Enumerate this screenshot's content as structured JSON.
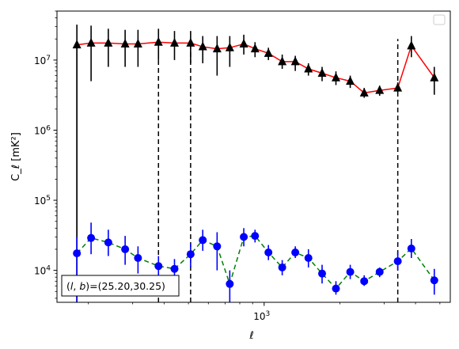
{
  "chart_data": {
    "type": "line",
    "xlabel": "ℓ",
    "ylabel": "C_ℓ  [mK²]",
    "xscale": "log",
    "yscale": "log",
    "xlim": [
      150,
      5500
    ],
    "ylim": [
      3500,
      50000000
    ],
    "x_major_ticks": [
      {
        "value": 1000,
        "base": "10",
        "exp": "3"
      }
    ],
    "y_major_ticks": [
      {
        "value": 10000,
        "base": "10",
        "exp": "4"
      },
      {
        "value": 100000,
        "base": "10",
        "exp": "5"
      },
      {
        "value": 1000000,
        "base": "10",
        "exp": "6"
      },
      {
        "value": 10000000,
        "base": "10",
        "exp": "7"
      }
    ],
    "legend": {
      "position": "upper right",
      "entries": []
    },
    "vlines": [
      {
        "x": 180,
        "y_from": 3500,
        "y_to": 17000000,
        "style": "solid",
        "color": "#000000"
      },
      {
        "x": 380,
        "y_from": 3500,
        "y_to": 18000000,
        "style": "dashed",
        "color": "#000000"
      },
      {
        "x": 510,
        "y_from": 3500,
        "y_to": 18000000,
        "style": "dashed",
        "color": "#000000"
      },
      {
        "x": 3400,
        "y_from": 3500,
        "y_to": 20000000,
        "style": "dashed",
        "color": "#000000"
      }
    ],
    "annotation": {
      "prefix": "(",
      "l": "l",
      "sep": ", ",
      "b": "b",
      "suffix": ")=(25.20,30.25)",
      "position": "lower left"
    },
    "series": [
      {
        "line_color": "#ff0000",
        "marker_color": "#000000",
        "marker": "triangle",
        "linestyle": "solid",
        "points": [
          {
            "x": 180,
            "y": 16500000,
            "lo": 3500,
            "hi": 32000000
          },
          {
            "x": 205,
            "y": 17500000,
            "lo": 5000000,
            "hi": 31000000
          },
          {
            "x": 240,
            "y": 17500000,
            "lo": 8000000,
            "hi": 28000000
          },
          {
            "x": 280,
            "y": 17000000,
            "lo": 8000000,
            "hi": 27000000
          },
          {
            "x": 315,
            "y": 17000000,
            "lo": 8000000,
            "hi": 27000000
          },
          {
            "x": 380,
            "y": 18000000,
            "lo": 10000000,
            "hi": 28000000
          },
          {
            "x": 440,
            "y": 17500000,
            "lo": 10000000,
            "hi": 26000000
          },
          {
            "x": 510,
            "y": 17500000,
            "lo": 9000000,
            "hi": 26000000
          },
          {
            "x": 570,
            "y": 15500000,
            "lo": 9000000,
            "hi": 22000000
          },
          {
            "x": 650,
            "y": 14500000,
            "lo": 6000000,
            "hi": 22000000
          },
          {
            "x": 730,
            "y": 15000000,
            "lo": 8000000,
            "hi": 22000000
          },
          {
            "x": 830,
            "y": 17000000,
            "lo": 12000000,
            "hi": 23000000
          },
          {
            "x": 920,
            "y": 14500000,
            "lo": 11000000,
            "hi": 18000000
          },
          {
            "x": 1040,
            "y": 12500000,
            "lo": 10000000,
            "hi": 15000000
          },
          {
            "x": 1180,
            "y": 9500000,
            "lo": 7500000,
            "hi": 12000000
          },
          {
            "x": 1330,
            "y": 9500000,
            "lo": 7000000,
            "hi": 11500000
          },
          {
            "x": 1500,
            "y": 7500000,
            "lo": 6000000,
            "hi": 9000000
          },
          {
            "x": 1700,
            "y": 6500000,
            "lo": 5000000,
            "hi": 8000000
          },
          {
            "x": 1930,
            "y": 5600000,
            "lo": 4400000,
            "hi": 6900000
          },
          {
            "x": 2200,
            "y": 5000000,
            "lo": 4000000,
            "hi": 6000000
          },
          {
            "x": 2500,
            "y": 3400000,
            "lo": 2900000,
            "hi": 4000000
          },
          {
            "x": 2880,
            "y": 3700000,
            "lo": 3100000,
            "hi": 4300000
          },
          {
            "x": 3400,
            "y": 4000000,
            "lo": 3500000,
            "hi": 4800000
          },
          {
            "x": 3850,
            "y": 16000000,
            "lo": 11000000,
            "hi": 22000000
          },
          {
            "x": 4750,
            "y": 5600000,
            "lo": 3200000,
            "hi": 8000000
          }
        ]
      },
      {
        "line_color": "#008000",
        "marker_color": "#0000ff",
        "marker": "circle",
        "linestyle": "dashed",
        "points": [
          {
            "x": 180,
            "y": 17500,
            "lo": 3500,
            "hi": 30000
          },
          {
            "x": 205,
            "y": 29000,
            "lo": 17000,
            "hi": 48000
          },
          {
            "x": 240,
            "y": 25000,
            "lo": 16000,
            "hi": 38000
          },
          {
            "x": 280,
            "y": 20000,
            "lo": 12000,
            "hi": 31000
          },
          {
            "x": 315,
            "y": 15000,
            "lo": 9000,
            "hi": 22000
          },
          {
            "x": 380,
            "y": 11500,
            "lo": 7000,
            "hi": 16000
          },
          {
            "x": 440,
            "y": 10500,
            "lo": 7000,
            "hi": 14500
          },
          {
            "x": 510,
            "y": 17000,
            "lo": 11000,
            "hi": 24000
          },
          {
            "x": 570,
            "y": 27000,
            "lo": 19000,
            "hi": 38000
          },
          {
            "x": 650,
            "y": 22000,
            "lo": 10000,
            "hi": 35000
          },
          {
            "x": 730,
            "y": 6400,
            "lo": 3500,
            "hi": 10000
          },
          {
            "x": 830,
            "y": 30000,
            "lo": 22000,
            "hi": 40000
          },
          {
            "x": 920,
            "y": 31000,
            "lo": 25000,
            "hi": 38000
          },
          {
            "x": 1040,
            "y": 18000,
            "lo": 14000,
            "hi": 23000
          },
          {
            "x": 1180,
            "y": 11000,
            "lo": 8500,
            "hi": 14000
          },
          {
            "x": 1330,
            "y": 18000,
            "lo": 15000,
            "hi": 22000
          },
          {
            "x": 1500,
            "y": 15000,
            "lo": 11000,
            "hi": 20000
          },
          {
            "x": 1700,
            "y": 9000,
            "lo": 6500,
            "hi": 12000
          },
          {
            "x": 1930,
            "y": 5500,
            "lo": 4500,
            "hi": 7000
          },
          {
            "x": 2200,
            "y": 9500,
            "lo": 7500,
            "hi": 12000
          },
          {
            "x": 2500,
            "y": 7000,
            "lo": 6000,
            "hi": 8500
          },
          {
            "x": 2880,
            "y": 9500,
            "lo": 8000,
            "hi": 11000
          },
          {
            "x": 3400,
            "y": 13500,
            "lo": 10000,
            "hi": 18000
          },
          {
            "x": 3850,
            "y": 20500,
            "lo": 15000,
            "hi": 28000
          },
          {
            "x": 4750,
            "y": 7200,
            "lo": 4500,
            "hi": 10500
          }
        ]
      }
    ]
  }
}
